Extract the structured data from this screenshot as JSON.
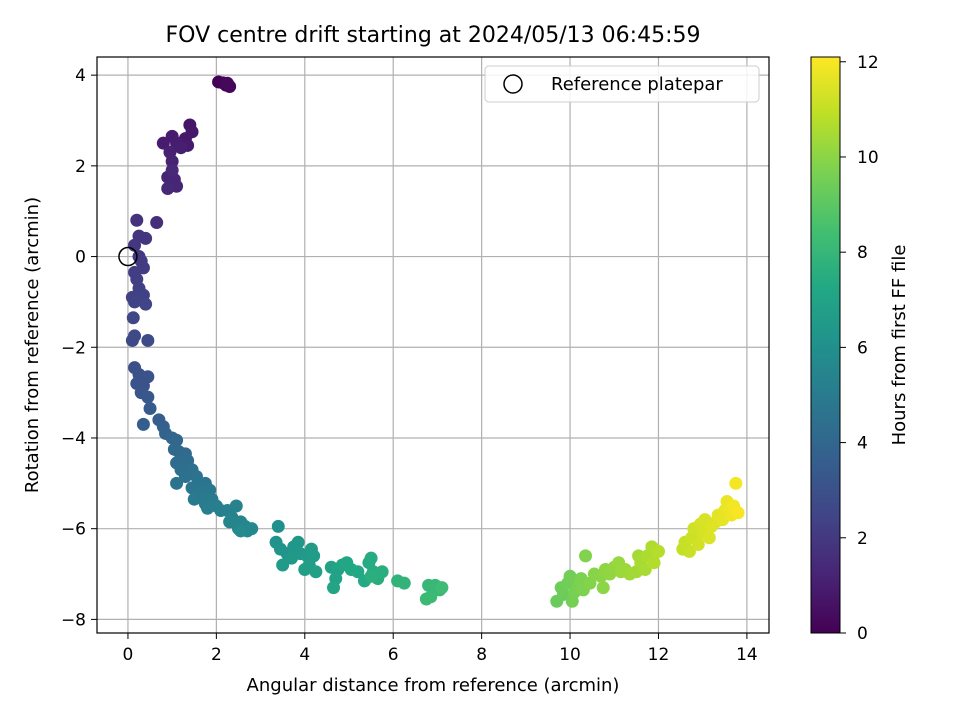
{
  "chart_data": {
    "type": "scatter",
    "title": "FOV centre drift starting at 2024/05/13 06:45:59",
    "xlabel": "Angular distance from reference (arcmin)",
    "ylabel": "Rotation from reference (arcmin)",
    "xlim": [
      -0.7,
      14.5
    ],
    "ylim": [
      -8.3,
      4.4
    ],
    "xticks": [
      0,
      2,
      4,
      6,
      8,
      10,
      12,
      14
    ],
    "yticks": [
      -8,
      -6,
      -4,
      -2,
      0,
      2,
      4
    ],
    "grid": true,
    "legend": {
      "position": "top-right",
      "entries": [
        "Reference platepar"
      ]
    },
    "reference_point": {
      "x": 0,
      "y": 0
    },
    "colorbar": {
      "label": "Hours from first FF file",
      "colormap": "viridis",
      "range": [
        0,
        12.1
      ],
      "ticks": [
        0,
        2,
        4,
        6,
        8,
        10,
        12
      ]
    },
    "points": [
      {
        "x": 2.05,
        "y": 3.85,
        "c": 0.05
      },
      {
        "x": 2.15,
        "y": 3.83,
        "c": 0.1
      },
      {
        "x": 2.22,
        "y": 3.78,
        "c": 0.15
      },
      {
        "x": 2.3,
        "y": 3.75,
        "c": 0.2
      },
      {
        "x": 2.25,
        "y": 3.82,
        "c": 0.25
      },
      {
        "x": 1.4,
        "y": 2.9,
        "c": 0.7
      },
      {
        "x": 1.45,
        "y": 2.75,
        "c": 0.75
      },
      {
        "x": 1.3,
        "y": 2.6,
        "c": 0.8
      },
      {
        "x": 1.35,
        "y": 2.45,
        "c": 0.85
      },
      {
        "x": 1.0,
        "y": 2.65,
        "c": 0.9
      },
      {
        "x": 0.8,
        "y": 2.5,
        "c": 0.95
      },
      {
        "x": 1.1,
        "y": 2.5,
        "c": 1.0
      },
      {
        "x": 1.2,
        "y": 2.4,
        "c": 1.05
      },
      {
        "x": 0.95,
        "y": 2.3,
        "c": 1.1
      },
      {
        "x": 1.0,
        "y": 2.1,
        "c": 1.15
      },
      {
        "x": 0.9,
        "y": 1.75,
        "c": 1.2
      },
      {
        "x": 1.05,
        "y": 1.7,
        "c": 1.25
      },
      {
        "x": 1.1,
        "y": 1.55,
        "c": 1.3
      },
      {
        "x": 0.9,
        "y": 1.5,
        "c": 1.35
      },
      {
        "x": 1.0,
        "y": 1.9,
        "c": 1.4
      },
      {
        "x": 0.65,
        "y": 0.75,
        "c": 1.6
      },
      {
        "x": 0.2,
        "y": 0.8,
        "c": 1.7
      },
      {
        "x": 0.25,
        "y": 0.45,
        "c": 1.8
      },
      {
        "x": 0.4,
        "y": 0.4,
        "c": 1.85
      },
      {
        "x": 0.15,
        "y": 0.25,
        "c": 1.9
      },
      {
        "x": 0.25,
        "y": 0.0,
        "c": 2.0
      },
      {
        "x": 0.3,
        "y": -0.1,
        "c": 2.05
      },
      {
        "x": 0.35,
        "y": -0.25,
        "c": 2.1
      },
      {
        "x": 0.15,
        "y": -0.35,
        "c": 2.15
      },
      {
        "x": 0.2,
        "y": -0.5,
        "c": 2.2
      },
      {
        "x": 0.25,
        "y": -0.7,
        "c": 2.25
      },
      {
        "x": 0.1,
        "y": -0.9,
        "c": 2.3
      },
      {
        "x": 0.35,
        "y": -0.85,
        "c": 2.35
      },
      {
        "x": 0.15,
        "y": -1.0,
        "c": 2.4
      },
      {
        "x": 0.4,
        "y": -1.05,
        "c": 2.45
      },
      {
        "x": 0.12,
        "y": -1.35,
        "c": 2.55
      },
      {
        "x": 0.15,
        "y": -1.75,
        "c": 2.65
      },
      {
        "x": 0.1,
        "y": -1.85,
        "c": 2.7
      },
      {
        "x": 0.45,
        "y": -1.85,
        "c": 2.75
      },
      {
        "x": 0.15,
        "y": -2.45,
        "c": 2.9
      },
      {
        "x": 0.25,
        "y": -2.6,
        "c": 3.0
      },
      {
        "x": 0.45,
        "y": -2.65,
        "c": 3.05
      },
      {
        "x": 0.2,
        "y": -2.8,
        "c": 3.1
      },
      {
        "x": 0.35,
        "y": -2.85,
        "c": 3.15
      },
      {
        "x": 0.3,
        "y": -3.0,
        "c": 3.2
      },
      {
        "x": 0.45,
        "y": -3.1,
        "c": 3.3
      },
      {
        "x": 0.5,
        "y": -3.35,
        "c": 3.4
      },
      {
        "x": 0.7,
        "y": -3.6,
        "c": 3.55
      },
      {
        "x": 0.35,
        "y": -3.7,
        "c": 3.6
      },
      {
        "x": 0.8,
        "y": -3.75,
        "c": 3.7
      },
      {
        "x": 0.85,
        "y": -3.9,
        "c": 3.8
      },
      {
        "x": 1.0,
        "y": -4.0,
        "c": 3.9
      },
      {
        "x": 1.1,
        "y": -4.05,
        "c": 3.95
      },
      {
        "x": 1.05,
        "y": -4.25,
        "c": 4.05
      },
      {
        "x": 1.15,
        "y": -4.3,
        "c": 4.1
      },
      {
        "x": 1.3,
        "y": -4.35,
        "c": 4.15
      },
      {
        "x": 1.1,
        "y": -4.55,
        "c": 4.25
      },
      {
        "x": 1.35,
        "y": -4.5,
        "c": 4.3
      },
      {
        "x": 1.2,
        "y": -4.7,
        "c": 4.4
      },
      {
        "x": 1.45,
        "y": -4.7,
        "c": 4.45
      },
      {
        "x": 1.3,
        "y": -4.85,
        "c": 4.5
      },
      {
        "x": 1.55,
        "y": -4.85,
        "c": 4.55
      },
      {
        "x": 1.1,
        "y": -5.0,
        "c": 4.6
      },
      {
        "x": 1.6,
        "y": -5.0,
        "c": 4.65
      },
      {
        "x": 1.75,
        "y": -5.0,
        "c": 4.7
      },
      {
        "x": 1.45,
        "y": -5.1,
        "c": 4.75
      },
      {
        "x": 1.65,
        "y": -5.2,
        "c": 4.8
      },
      {
        "x": 1.85,
        "y": -5.15,
        "c": 4.85
      },
      {
        "x": 1.7,
        "y": -5.3,
        "c": 4.9
      },
      {
        "x": 1.5,
        "y": -5.35,
        "c": 4.95
      },
      {
        "x": 1.9,
        "y": -5.35,
        "c": 5.0
      },
      {
        "x": 1.75,
        "y": -5.45,
        "c": 5.05
      },
      {
        "x": 2.0,
        "y": -5.5,
        "c": 5.1
      },
      {
        "x": 1.8,
        "y": -5.55,
        "c": 5.15
      },
      {
        "x": 2.1,
        "y": -5.6,
        "c": 5.2
      },
      {
        "x": 2.25,
        "y": -5.6,
        "c": 5.25
      },
      {
        "x": 2.45,
        "y": -5.5,
        "c": 5.3
      },
      {
        "x": 2.35,
        "y": -5.75,
        "c": 5.35
      },
      {
        "x": 2.3,
        "y": -5.85,
        "c": 5.4
      },
      {
        "x": 2.55,
        "y": -5.85,
        "c": 5.45
      },
      {
        "x": 2.5,
        "y": -6.0,
        "c": 5.5
      },
      {
        "x": 2.65,
        "y": -5.95,
        "c": 5.55
      },
      {
        "x": 2.7,
        "y": -6.05,
        "c": 5.6
      },
      {
        "x": 2.8,
        "y": -6.0,
        "c": 5.65
      },
      {
        "x": 2.55,
        "y": -6.05,
        "c": 5.7
      },
      {
        "x": 3.4,
        "y": -5.95,
        "c": 6.0
      },
      {
        "x": 3.35,
        "y": -6.3,
        "c": 6.1
      },
      {
        "x": 3.45,
        "y": -6.45,
        "c": 6.2
      },
      {
        "x": 3.6,
        "y": -6.55,
        "c": 6.25
      },
      {
        "x": 3.75,
        "y": -6.4,
        "c": 6.3
      },
      {
        "x": 3.85,
        "y": -6.3,
        "c": 6.35
      },
      {
        "x": 3.9,
        "y": -6.55,
        "c": 6.4
      },
      {
        "x": 3.7,
        "y": -6.65,
        "c": 6.45
      },
      {
        "x": 3.5,
        "y": -6.8,
        "c": 6.5
      },
      {
        "x": 4.05,
        "y": -6.6,
        "c": 6.55
      },
      {
        "x": 4.15,
        "y": -6.45,
        "c": 6.6
      },
      {
        "x": 4.2,
        "y": -6.6,
        "c": 6.65
      },
      {
        "x": 4.1,
        "y": -6.8,
        "c": 6.7
      },
      {
        "x": 4.0,
        "y": -6.9,
        "c": 6.75
      },
      {
        "x": 4.25,
        "y": -6.95,
        "c": 6.8
      },
      {
        "x": 4.6,
        "y": -6.85,
        "c": 6.9
      },
      {
        "x": 4.75,
        "y": -6.9,
        "c": 6.95
      },
      {
        "x": 4.7,
        "y": -7.1,
        "c": 7.0
      },
      {
        "x": 4.65,
        "y": -7.3,
        "c": 7.05
      },
      {
        "x": 4.85,
        "y": -6.8,
        "c": 7.1
      },
      {
        "x": 4.95,
        "y": -6.75,
        "c": 7.15
      },
      {
        "x": 5.05,
        "y": -6.9,
        "c": 7.2
      },
      {
        "x": 5.2,
        "y": -6.95,
        "c": 7.25
      },
      {
        "x": 5.35,
        "y": -7.15,
        "c": 7.3
      },
      {
        "x": 5.45,
        "y": -6.75,
        "c": 7.35
      },
      {
        "x": 5.5,
        "y": -6.65,
        "c": 7.4
      },
      {
        "x": 5.55,
        "y": -6.95,
        "c": 7.45
      },
      {
        "x": 5.65,
        "y": -7.1,
        "c": 7.5
      },
      {
        "x": 5.75,
        "y": -6.95,
        "c": 7.55
      },
      {
        "x": 5.5,
        "y": -7.05,
        "c": 7.6
      },
      {
        "x": 6.1,
        "y": -7.15,
        "c": 7.8
      },
      {
        "x": 6.25,
        "y": -7.2,
        "c": 7.85
      },
      {
        "x": 6.8,
        "y": -7.25,
        "c": 8.0
      },
      {
        "x": 6.95,
        "y": -7.25,
        "c": 8.05
      },
      {
        "x": 7.05,
        "y": -7.35,
        "c": 8.1
      },
      {
        "x": 6.85,
        "y": -7.5,
        "c": 8.15
      },
      {
        "x": 6.75,
        "y": -7.55,
        "c": 8.2
      },
      {
        "x": 7.1,
        "y": -7.3,
        "c": 8.25
      },
      {
        "x": 9.7,
        "y": -7.6,
        "c": 9.3
      },
      {
        "x": 9.85,
        "y": -7.45,
        "c": 9.35
      },
      {
        "x": 9.8,
        "y": -7.3,
        "c": 9.4
      },
      {
        "x": 9.95,
        "y": -7.2,
        "c": 9.45
      },
      {
        "x": 10.0,
        "y": -7.05,
        "c": 9.5
      },
      {
        "x": 10.05,
        "y": -7.6,
        "c": 9.55
      },
      {
        "x": 10.1,
        "y": -7.4,
        "c": 9.6
      },
      {
        "x": 10.2,
        "y": -7.25,
        "c": 9.65
      },
      {
        "x": 10.25,
        "y": -7.1,
        "c": 9.7
      },
      {
        "x": 10.3,
        "y": -7.35,
        "c": 9.75
      },
      {
        "x": 10.35,
        "y": -6.6,
        "c": 9.8
      },
      {
        "x": 10.45,
        "y": -7.2,
        "c": 9.85
      },
      {
        "x": 10.55,
        "y": -7.0,
        "c": 9.9
      },
      {
        "x": 10.7,
        "y": -7.05,
        "c": 9.95
      },
      {
        "x": 10.75,
        "y": -7.3,
        "c": 10.0
      },
      {
        "x": 10.8,
        "y": -6.9,
        "c": 10.05
      },
      {
        "x": 10.9,
        "y": -7.0,
        "c": 10.1
      },
      {
        "x": 11.0,
        "y": -6.85,
        "c": 10.15
      },
      {
        "x": 11.1,
        "y": -6.75,
        "c": 10.2
      },
      {
        "x": 11.15,
        "y": -6.95,
        "c": 10.25
      },
      {
        "x": 11.25,
        "y": -6.9,
        "c": 10.3
      },
      {
        "x": 11.35,
        "y": -7.0,
        "c": 10.35
      },
      {
        "x": 11.5,
        "y": -6.95,
        "c": 10.4
      },
      {
        "x": 11.55,
        "y": -6.6,
        "c": 10.45
      },
      {
        "x": 11.6,
        "y": -6.75,
        "c": 10.5
      },
      {
        "x": 11.7,
        "y": -6.9,
        "c": 10.55
      },
      {
        "x": 11.75,
        "y": -6.6,
        "c": 10.6
      },
      {
        "x": 11.85,
        "y": -6.4,
        "c": 10.65
      },
      {
        "x": 11.9,
        "y": -6.75,
        "c": 10.7
      },
      {
        "x": 12.0,
        "y": -6.5,
        "c": 10.75
      },
      {
        "x": 12.55,
        "y": -6.45,
        "c": 11.0
      },
      {
        "x": 12.6,
        "y": -6.3,
        "c": 11.05
      },
      {
        "x": 12.7,
        "y": -6.5,
        "c": 11.1
      },
      {
        "x": 12.75,
        "y": -6.2,
        "c": 11.15
      },
      {
        "x": 12.8,
        "y": -6.0,
        "c": 11.2
      },
      {
        "x": 12.9,
        "y": -6.35,
        "c": 11.25
      },
      {
        "x": 12.95,
        "y": -5.9,
        "c": 11.3
      },
      {
        "x": 13.0,
        "y": -6.1,
        "c": 11.35
      },
      {
        "x": 13.05,
        "y": -5.8,
        "c": 11.4
      },
      {
        "x": 13.15,
        "y": -6.2,
        "c": 11.45
      },
      {
        "x": 13.2,
        "y": -5.95,
        "c": 11.5
      },
      {
        "x": 13.3,
        "y": -5.85,
        "c": 11.55
      },
      {
        "x": 13.35,
        "y": -5.7,
        "c": 11.6
      },
      {
        "x": 13.45,
        "y": -5.8,
        "c": 11.65
      },
      {
        "x": 13.5,
        "y": -5.6,
        "c": 11.7
      },
      {
        "x": 13.55,
        "y": -5.4,
        "c": 11.75
      },
      {
        "x": 13.6,
        "y": -5.55,
        "c": 11.8
      },
      {
        "x": 13.65,
        "y": -5.7,
        "c": 11.85
      },
      {
        "x": 13.7,
        "y": -5.5,
        "c": 11.9
      },
      {
        "x": 13.75,
        "y": -5.0,
        "c": 11.95
      },
      {
        "x": 13.8,
        "y": -5.65,
        "c": 12.0
      }
    ]
  }
}
